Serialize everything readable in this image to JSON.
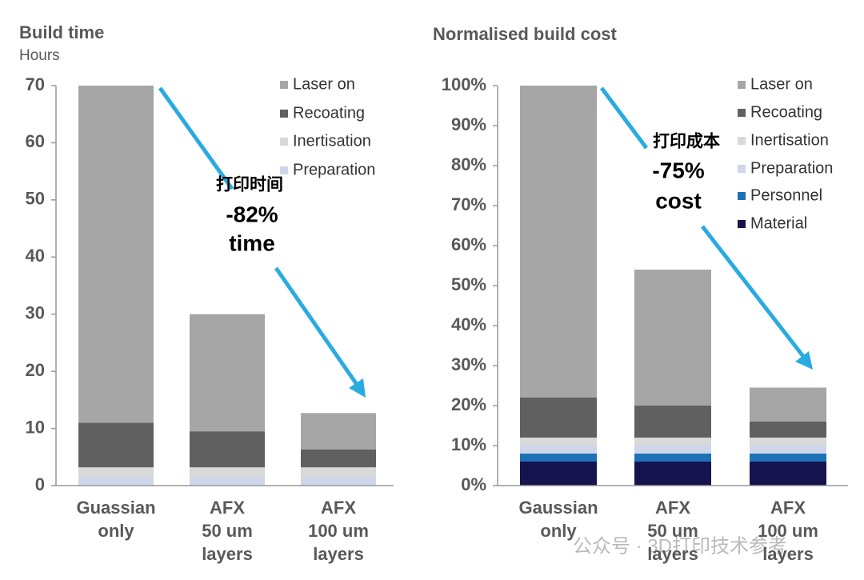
{
  "chart_data": [
    {
      "type": "stacked_bar",
      "title": "Build time",
      "subtitle": "Hours",
      "categories": [
        "Guassian\nonly",
        "AFX\n50 um\nlayers",
        "AFX\n100 um\nlayers"
      ],
      "series": [
        {
          "name": "Preparation",
          "color": "#cdd6ea",
          "values": [
            1.5,
            1.5,
            1.5
          ]
        },
        {
          "name": "Inertisation",
          "color": "#d9d9d9",
          "values": [
            1.7,
            1.7,
            1.7
          ]
        },
        {
          "name": "Recoating",
          "color": "#606060",
          "values": [
            7.8,
            6.3,
            3.1
          ]
        },
        {
          "name": "Laser on",
          "color": "#a6a6a6",
          "values": [
            59,
            20.5,
            6.4
          ]
        }
      ],
      "ylim": [
        0,
        70
      ],
      "yticks": [
        0,
        10,
        20,
        30,
        40,
        50,
        60,
        70
      ],
      "annotations": [
        "打印时间",
        "-82%",
        "time"
      ]
    },
    {
      "type": "stacked_bar",
      "title": "Normalised build cost",
      "categories": [
        "Gaussian\nonly",
        "AFX\n50 um\nlayers",
        "AFX\n100 um\nlayers"
      ],
      "series": [
        {
          "name": "Material",
          "color": "#15144f",
          "values": [
            6,
            6,
            6
          ]
        },
        {
          "name": "Personnel",
          "color": "#1c72b5",
          "values": [
            2,
            2,
            2
          ]
        },
        {
          "name": "Preparation",
          "color": "#cdd6ea",
          "values": [
            2,
            2,
            2
          ]
        },
        {
          "name": "Inertisation",
          "color": "#d9d9d9",
          "values": [
            2,
            2,
            2
          ]
        },
        {
          "name": "Recoating",
          "color": "#606060",
          "values": [
            10,
            8,
            4
          ]
        },
        {
          "name": "Laser on",
          "color": "#a6a6a6",
          "values": [
            78,
            34,
            8.5
          ]
        }
      ],
      "ylim": [
        0,
        100
      ],
      "yticks": [
        {
          "value": 0,
          "label": "0%"
        },
        {
          "value": 10,
          "label": "10%"
        },
        {
          "value": 20,
          "label": "20%"
        },
        {
          "value": 30,
          "label": "30%"
        },
        {
          "value": 40,
          "label": "40%"
        },
        {
          "value": 50,
          "label": "50%"
        },
        {
          "value": 60,
          "label": "60%"
        },
        {
          "value": 70,
          "label": "70%"
        },
        {
          "value": 80,
          "label": "80%"
        },
        {
          "value": 90,
          "label": "90%"
        },
        {
          "value": 100,
          "label": "100%"
        }
      ],
      "annotations": [
        "打印成本",
        "-75%",
        "cost"
      ]
    }
  ],
  "watermark": "公众号 · 3D打印技术参考"
}
